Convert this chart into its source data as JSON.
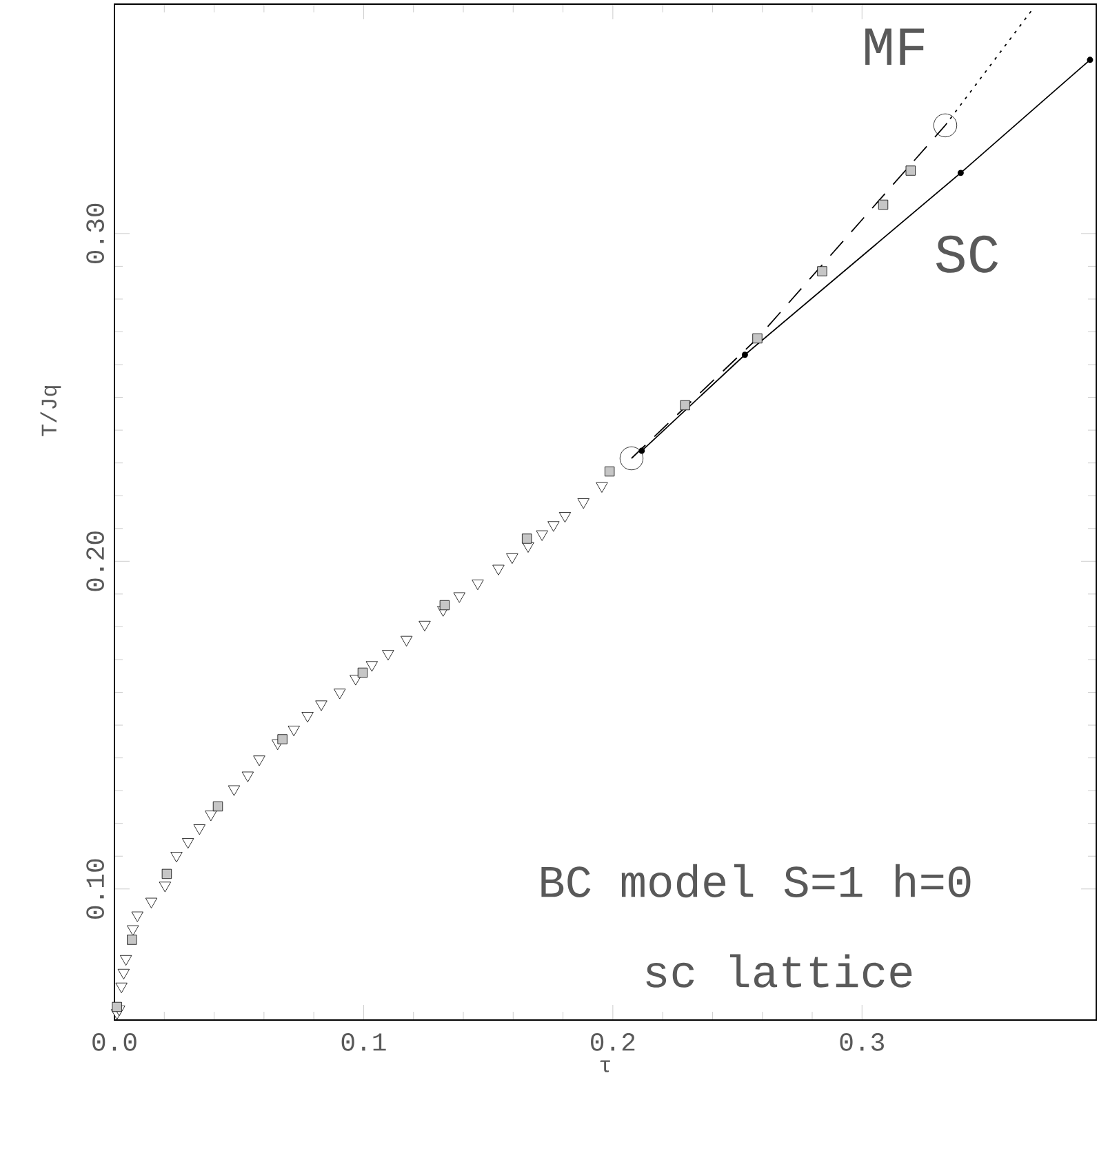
{
  "chart_data": {
    "type": "scatter",
    "xlabel": "τ",
    "ylabel": "T/Jq",
    "xlim": [
      0,
      0.394
    ],
    "ylim": [
      0.06,
      0.37
    ],
    "xticks": [
      {
        "value": 0,
        "label": "0.0"
      },
      {
        "value": 0.1,
        "label": "0.1"
      },
      {
        "value": 0.2,
        "label": "0.2"
      },
      {
        "value": 0.3,
        "label": "0.3"
      }
    ],
    "yticks": [
      {
        "value": 0.1,
        "label": "0.10"
      },
      {
        "value": 0.2,
        "label": "0.20"
      },
      {
        "value": 0.3,
        "label": "0.30"
      }
    ],
    "annotations": [
      "BC model S=1 h=0",
      "sc lattice"
    ],
    "series": [
      {
        "color": "#000000",
        "marker": "triangle",
        "x": [
          0.001,
          0.0019,
          0.0028,
          0.0037,
          0.0046,
          0.0074,
          0.0092,
          0.0148,
          0.0203,
          0.0249,
          0.0295,
          0.0341,
          0.0387,
          0.048,
          0.0535,
          0.0581,
          0.0655,
          0.072,
          0.0775,
          0.083,
          0.0904,
          0.0968,
          0.1033,
          0.1098,
          0.1172,
          0.1245,
          0.1319,
          0.1384,
          0.1458,
          0.1541,
          0.1596,
          0.166,
          0.1716,
          0.1762,
          0.1808,
          0.1882,
          0.1956
        ],
        "values": [
          0.0622,
          0.0633,
          0.0703,
          0.0745,
          0.0787,
          0.0878,
          0.092,
          0.0962,
          0.1011,
          0.1102,
          0.1144,
          0.1186,
          0.1228,
          0.1305,
          0.1347,
          0.1396,
          0.1445,
          0.1487,
          0.1529,
          0.1564,
          0.16,
          0.1642,
          0.1684,
          0.1718,
          0.1761,
          0.1807,
          0.1852,
          0.1894,
          0.1933,
          0.1978,
          0.2013,
          0.2047,
          0.2083,
          0.2111,
          0.2139,
          0.2181,
          0.223
        ]
      },
      {
        "color": "#000000",
        "marker": "square",
        "x": [
          0.001,
          0.007,
          0.021,
          0.0415,
          0.0674,
          0.0996,
          0.1325,
          0.1655,
          0.1987,
          0.229,
          0.258,
          0.284,
          0.3085,
          0.3195
        ],
        "values": [
          0.064,
          0.0845,
          0.1046,
          0.1252,
          0.1457,
          0.166,
          0.1866,
          0.2069,
          0.2274,
          0.2476,
          0.268,
          0.2885,
          0.3088,
          0.3192
        ]
      },
      {
        "type": "line",
        "name": "SC",
        "color": "#000000",
        "marker": "circle",
        "line_style": "solid",
        "x": [
          0.2116,
          0.253,
          0.3396,
          0.3915
        ],
        "values": [
          0.2337,
          0.263,
          0.3185,
          0.353
        ]
      },
      {
        "type": "line",
        "color": "#000000",
        "marker": "none",
        "line_style": "dashed",
        "x": [
          0.2075,
          0.258,
          0.3334
        ],
        "values": [
          0.2314,
          0.268,
          0.333
        ]
      },
      {
        "type": "line",
        "name": "MF",
        "color": "#000000",
        "marker": "none",
        "line_style": "dotted",
        "x": [
          0.3334,
          0.369
        ],
        "values": [
          0.333,
          0.369
        ]
      },
      {
        "color": "#000000",
        "marker": "circle",
        "x": [
          0.2075,
          0.3334
        ],
        "values": [
          0.2314,
          0.333
        ]
      }
    ]
  }
}
